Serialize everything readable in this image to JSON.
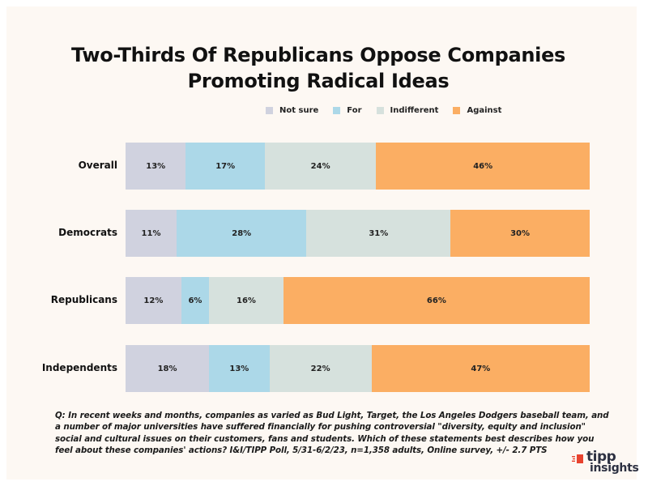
{
  "chart_data": {
    "type": "bar",
    "orientation": "horizontal-stacked-100",
    "title": "Two-Thirds Of Republicans Oppose Companies Promoting Radical Ideas",
    "title_lines": [
      "Two-Thirds Of Republicans Oppose Companies",
      "Promoting Radical Ideas"
    ],
    "categories": [
      "Overall",
      "Democrats",
      "Republicans",
      "Independents"
    ],
    "series": [
      {
        "name": "Not sure",
        "color": "#d0d2df",
        "values": [
          13,
          11,
          12,
          18
        ]
      },
      {
        "name": "For",
        "color": "#acd8e8",
        "values": [
          17,
          28,
          6,
          13
        ]
      },
      {
        "name": "Indifferent",
        "color": "#d6e1dd",
        "values": [
          24,
          31,
          16,
          22
        ]
      },
      {
        "name": "Against",
        "color": "#fbae63",
        "values": [
          46,
          30,
          66,
          47
        ]
      }
    ],
    "value_suffix": "%",
    "xlim": [
      0,
      100
    ],
    "legend_position": "top-center",
    "grid": false,
    "xlabel": "",
    "ylabel": ""
  },
  "note": "Q:  In recent weeks and months, companies as varied as Bud Light, Target, the Los Angeles Dodgers baseball team, and a number of major universities have suffered financially for pushing controversial \"diversity, equity and inclusion\" social and cultural issues on their customers, fans and students. Which of these statements best describes how you feel about these companies' actions? I&I/TIPP Poll, 5/31-6/2/23, n=1,358 adults, Online survey, +/- 2.7 PTS",
  "logo": {
    "line1": "tipp",
    "line2": "insights",
    "accent": "#e8432f"
  }
}
